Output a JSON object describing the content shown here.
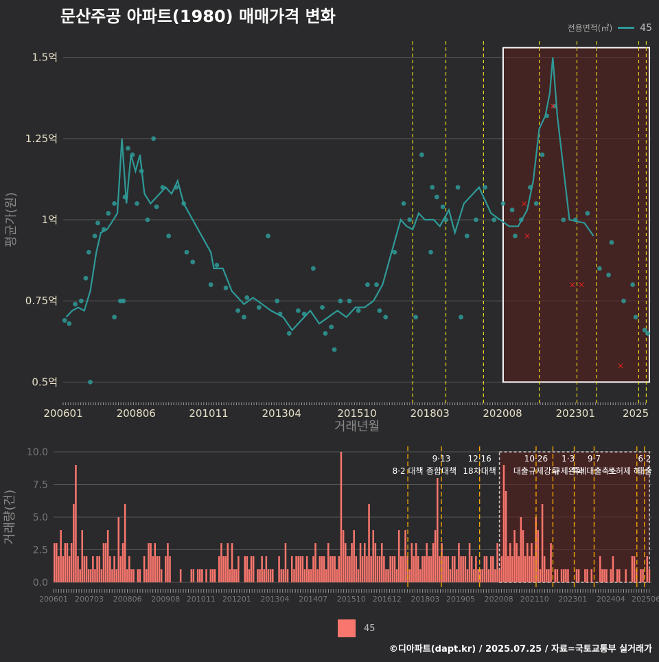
{
  "title": "문산주공 아파트(1980) 매매가격 변화",
  "credit": "©디아파트(dapt.kr) / 2025.07.25 / 자료=국토교통부 실거래가",
  "legend_top": {
    "title": "전용면적(㎡)",
    "value": "45"
  },
  "legend_bottom": {
    "value": "45"
  },
  "colors": {
    "background": "#2a2a2c",
    "line": "#2e9a98",
    "bar": "#f8766d",
    "policy_top": "#e6d41a",
    "policy_bottom": "#f0a500",
    "highlight": "#5a1e1e",
    "cancel": "#e0221c"
  },
  "chart_data": [
    {
      "type": "line",
      "ylabel": "평균가(원)",
      "xlabel": "거래년월",
      "ylim": [
        0.45,
        1.55
      ],
      "yticks": [
        {
          "v": 0.5,
          "label": "0.5억"
        },
        {
          "v": 0.75,
          "label": "0.75억"
        },
        {
          "v": 1.0,
          "label": "1억"
        },
        {
          "v": 1.25,
          "label": "1.25억"
        },
        {
          "v": 1.5,
          "label": "1.5억"
        }
      ],
      "xticks": [
        {
          "v": 2006.0,
          "label": "200601"
        },
        {
          "v": 2008.42,
          "label": "200806"
        },
        {
          "v": 2010.83,
          "label": "201011"
        },
        {
          "v": 2013.25,
          "label": "201304"
        },
        {
          "v": 2015.75,
          "label": "201510"
        },
        {
          "v": 2018.17,
          "label": "201803"
        },
        {
          "v": 2020.58,
          "label": "202008"
        },
        {
          "v": 2023.0,
          "label": "202301"
        },
        {
          "v": 2025.0,
          "label": "2025"
        }
      ],
      "xlim": [
        2006.0,
        2025.5
      ],
      "series": [
        {
          "name": "45",
          "x": [
            2006.1,
            2006.3,
            2006.5,
            2006.7,
            2006.9,
            2007.1,
            2007.25,
            2007.45,
            2007.6,
            2007.8,
            2007.95,
            2008.1,
            2008.25,
            2008.4,
            2008.55,
            2008.7,
            2008.9,
            2009.4,
            2009.6,
            2009.8,
            2010.0,
            2010.9,
            2011.0,
            2011.3,
            2011.6,
            2012.0,
            2012.3,
            2012.6,
            2012.9,
            2013.3,
            2013.6,
            2013.9,
            2014.2,
            2014.5,
            2014.8,
            2015.1,
            2015.4,
            2015.7,
            2016.0,
            2016.3,
            2016.6,
            2016.9,
            2017.2,
            2017.4,
            2017.6,
            2017.8,
            2018.0,
            2018.3,
            2018.5,
            2018.8,
            2019.0,
            2019.3,
            2019.6,
            2019.8,
            2020.2,
            2020.5,
            2020.8,
            2021.1,
            2021.4,
            2021.6,
            2021.8,
            2022.0,
            2022.15,
            2022.25,
            2022.4,
            2022.8,
            2023.3,
            2023.6
          ],
          "y": [
            0.7,
            0.72,
            0.73,
            0.72,
            0.78,
            0.9,
            0.96,
            0.97,
            0.99,
            1.02,
            1.25,
            1.05,
            1.2,
            1.15,
            1.2,
            1.08,
            1.05,
            1.1,
            1.08,
            1.12,
            1.05,
            0.9,
            0.85,
            0.85,
            0.78,
            0.74,
            0.76,
            0.74,
            0.72,
            0.7,
            0.66,
            0.69,
            0.72,
            0.68,
            0.7,
            0.72,
            0.7,
            0.73,
            0.73,
            0.75,
            0.8,
            0.9,
            1.0,
            0.98,
            0.97,
            1.02,
            1.0,
            1.0,
            0.98,
            1.03,
            0.96,
            1.05,
            1.08,
            1.1,
            1.02,
            1.0,
            0.98,
            0.98,
            1.03,
            1.12,
            1.28,
            1.32,
            1.39,
            1.5,
            1.32,
            1.0,
            0.99,
            0.95
          ]
        }
      ],
      "scatter_points": {
        "x": [
          2006.05,
          2006.2,
          2006.4,
          2006.6,
          2006.75,
          2006.85,
          2007.05,
          2007.15,
          2007.35,
          2007.5,
          2007.7,
          2007.9,
          2008.05,
          2008.15,
          2008.3,
          2008.45,
          2008.6,
          2008.8,
          2009.0,
          2009.3,
          2009.5,
          2009.75,
          2010.1,
          2010.3,
          2010.9,
          2011.1,
          2011.4,
          2011.8,
          2012.1,
          2012.5,
          2012.8,
          2013.2,
          2013.5,
          2013.8,
          2014.0,
          2014.3,
          2014.6,
          2014.9,
          2015.2,
          2015.5,
          2015.8,
          2016.1,
          2016.4,
          2016.7,
          2017.0,
          2017.3,
          2017.5,
          2017.9,
          2018.2,
          2018.4,
          2018.7,
          2019.1,
          2019.4,
          2019.7,
          2020.0,
          2020.3,
          2020.6,
          2020.9,
          2021.2,
          2021.5,
          2021.9,
          2022.05,
          2022.3,
          2023.0,
          2023.4,
          2023.8,
          2024.2,
          2024.6,
          2025.0,
          2025.3,
          2006.9,
          2007.7,
          2008.0,
          2009.1,
          2010.0,
          2012.0,
          2013.1,
          2014.7,
          2015.0,
          2016.5,
          2017.7,
          2018.25,
          2018.6,
          2019.2,
          2021.0,
          2021.7,
          2022.6,
          2024.1,
          2024.9,
          2025.4
        ],
        "y": [
          0.69,
          0.68,
          0.74,
          0.75,
          0.82,
          0.9,
          0.95,
          0.99,
          0.97,
          1.02,
          1.05,
          0.75,
          1.07,
          1.22,
          1.2,
          1.05,
          1.15,
          1.0,
          1.25,
          1.1,
          0.95,
          1.1,
          0.9,
          0.87,
          0.8,
          0.86,
          0.79,
          0.72,
          0.76,
          0.73,
          0.95,
          0.71,
          0.65,
          0.72,
          0.71,
          0.85,
          0.73,
          0.67,
          0.75,
          0.75,
          0.72,
          0.8,
          0.8,
          0.7,
          0.9,
          1.05,
          1.0,
          1.2,
          0.9,
          1.07,
          1.0,
          1.1,
          0.95,
          1.0,
          1.1,
          1.0,
          1.05,
          1.03,
          1.0,
          1.1,
          1.2,
          1.32,
          1.35,
          1.0,
          1.02,
          0.85,
          0.93,
          0.75,
          0.7,
          0.66,
          0.5,
          0.7,
          0.75,
          1.04,
          1.05,
          0.7,
          0.75,
          0.65,
          0.6,
          0.72,
          0.7,
          1.1,
          1.04,
          0.7,
          0.95,
          1.05,
          1.0,
          0.83,
          0.8,
          0.65
        ]
      },
      "cancelled": {
        "x": [
          2021.3,
          2021.4,
          2022.25,
          2022.9,
          2023.2,
          2024.5
        ],
        "y": [
          1.05,
          0.95,
          1.35,
          0.8,
          0.8,
          0.55
        ]
      },
      "policy_lines": [
        2017.6,
        2018.7,
        2019.95,
        2021.8,
        2023.05,
        2023.7,
        2025.1,
        2025.35
      ],
      "highlight": {
        "x0": 2020.6,
        "x1": 2025.5,
        "y0": 0.5,
        "y1": 1.53
      }
    },
    {
      "type": "bar",
      "ylabel": "거래량(건)",
      "ylim": [
        0,
        10
      ],
      "yticks": [
        {
          "v": 0.0,
          "label": "0.0"
        },
        {
          "v": 2.5,
          "label": "2.5"
        },
        {
          "v": 5.0,
          "label": "5.0"
        },
        {
          "v": 7.5,
          "label": "7.5"
        },
        {
          "v": 10.0,
          "label": "10.0"
        }
      ],
      "xticks": [
        {
          "v": 2006.0,
          "label": "200601"
        },
        {
          "v": 2007.17,
          "label": "200703"
        },
        {
          "v": 2008.42,
          "label": "200806"
        },
        {
          "v": 2009.67,
          "label": "200908"
        },
        {
          "v": 2010.83,
          "label": "201011"
        },
        {
          "v": 2012.0,
          "label": "201201"
        },
        {
          "v": 2013.25,
          "label": "201304"
        },
        {
          "v": 2014.5,
          "label": "201407"
        },
        {
          "v": 2015.75,
          "label": "201510"
        },
        {
          "v": 2016.92,
          "label": "201612"
        },
        {
          "v": 2018.17,
          "label": "201803"
        },
        {
          "v": 2019.33,
          "label": "201905"
        },
        {
          "v": 2020.58,
          "label": "202008"
        },
        {
          "v": 2021.75,
          "label": "202110"
        },
        {
          "v": 2023.0,
          "label": "202301"
        },
        {
          "v": 2024.25,
          "label": "202404"
        },
        {
          "v": 2025.4,
          "label": "202506"
        }
      ],
      "xlim": [
        2006.0,
        2025.6
      ],
      "values": [
        3,
        3,
        2,
        4,
        2,
        3,
        3,
        2,
        3,
        6,
        9,
        2,
        1,
        4,
        2,
        2,
        1,
        1,
        2,
        1,
        2,
        2,
        1,
        3,
        3,
        4,
        2,
        1,
        2,
        1,
        5,
        2,
        3,
        6,
        1,
        2,
        1,
        1,
        0,
        1,
        1,
        0,
        2,
        1,
        3,
        3,
        2,
        3,
        2,
        2,
        1,
        0,
        2,
        3,
        2,
        0,
        0,
        0,
        0,
        1,
        0,
        0,
        0,
        0,
        1,
        1,
        0,
        1,
        1,
        1,
        0,
        1,
        0,
        1,
        1,
        1,
        0,
        2,
        3,
        2,
        2,
        3,
        1,
        3,
        1,
        1,
        2,
        0,
        0,
        2,
        2,
        1,
        2,
        2,
        0,
        1,
        1,
        2,
        1,
        2,
        1,
        1,
        1,
        0,
        0,
        2,
        1,
        1,
        3,
        1,
        0,
        2,
        1,
        2,
        2,
        2,
        2,
        1,
        2,
        1,
        1,
        2,
        3,
        1,
        2,
        2,
        2,
        1,
        3,
        2,
        2,
        2,
        1,
        2,
        10,
        4,
        3,
        2,
        2,
        3,
        4,
        2,
        1,
        3,
        2,
        3,
        2,
        6,
        2,
        4,
        3,
        2,
        2,
        3,
        2,
        1,
        1,
        2,
        2,
        2,
        1,
        4,
        2,
        2,
        4,
        2,
        1,
        3,
        2,
        3,
        2,
        1,
        2,
        2,
        3,
        2,
        2,
        3,
        4,
        8,
        2,
        3,
        2,
        2,
        2,
        1,
        2,
        2,
        1,
        3,
        2,
        2,
        2,
        1,
        3,
        2,
        1,
        2,
        1,
        1,
        1,
        2,
        2,
        1,
        2,
        2,
        1,
        3,
        1,
        2,
        9,
        7,
        2,
        3,
        2,
        4,
        3,
        2,
        5,
        4,
        2,
        3,
        2,
        3,
        2,
        5,
        4,
        1,
        6,
        2,
        1,
        1,
        3,
        0,
        1,
        1,
        0,
        1,
        1,
        1,
        1,
        0,
        0,
        0,
        1,
        1,
        0,
        0,
        1,
        1,
        0,
        1,
        0,
        0,
        0,
        2,
        1,
        1,
        1,
        0,
        1,
        2,
        0,
        1,
        1,
        0,
        0,
        1,
        0,
        0,
        2,
        2,
        1,
        0,
        1,
        1,
        0,
        2,
        1
      ],
      "policy_lines": [
        2017.6,
        2018.7,
        2019.95,
        2021.8,
        2022.35,
        2023.05,
        2023.7,
        2025.1,
        2025.35
      ],
      "policy_labels": [
        {
          "x": 2017.6,
          "date": "",
          "text": "8·2 대책"
        },
        {
          "x": 2018.7,
          "date": "9·13",
          "text": "종합대책"
        },
        {
          "x": 2019.95,
          "date": "12·16",
          "text": "18차대책"
        },
        {
          "x": 2021.8,
          "date": "10·26",
          "text": "대출규제강화"
        },
        {
          "x": 2022.85,
          "date": "1·3",
          "text": "규제완화"
        },
        {
          "x": 2023.7,
          "date": "9·7",
          "text": "특례대출축소"
        },
        {
          "x": 2024.7,
          "date": "",
          "text": "토허제 해"
        },
        {
          "x": 2025.35,
          "date": "6·2",
          "text": "대출"
        }
      ],
      "highlight": {
        "x0": 2020.6,
        "x1": 2025.6
      }
    }
  ]
}
